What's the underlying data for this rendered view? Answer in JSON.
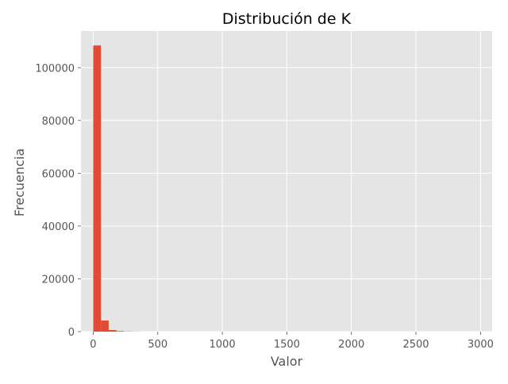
{
  "colors": {
    "figure_background": "#ffffff",
    "plot_background": "#e5e5e5",
    "grid": "#ffffff",
    "bar": "#e24a33",
    "tick_text": "#555555",
    "title_text": "#000000"
  },
  "chart_data": {
    "type": "bar",
    "subtype": "histogram",
    "title": "Distribución de K",
    "xlabel": "Valor",
    "ylabel": "Frecuencia",
    "xlim": [
      -95,
      3090
    ],
    "ylim": [
      0,
      113900
    ],
    "x_ticks": [
      0,
      500,
      1000,
      1500,
      2000,
      2500,
      3000
    ],
    "y_ticks": [
      0,
      20000,
      40000,
      60000,
      80000,
      100000
    ],
    "x_tick_labels": [
      "0",
      "500",
      "1000",
      "1500",
      "2000",
      "2500",
      "3000"
    ],
    "y_tick_labels": [
      "0",
      "20000",
      "40000",
      "60000",
      "80000",
      "100000"
    ],
    "grid": true,
    "bin_width": 59.8,
    "bins": [
      {
        "start": 0,
        "count": 108400
      },
      {
        "start": 59.8,
        "count": 4200
      },
      {
        "start": 119.6,
        "count": 600
      },
      {
        "start": 179.4,
        "count": 200
      },
      {
        "start": 239.2,
        "count": 80
      },
      {
        "start": 299,
        "count": 30
      }
    ]
  }
}
